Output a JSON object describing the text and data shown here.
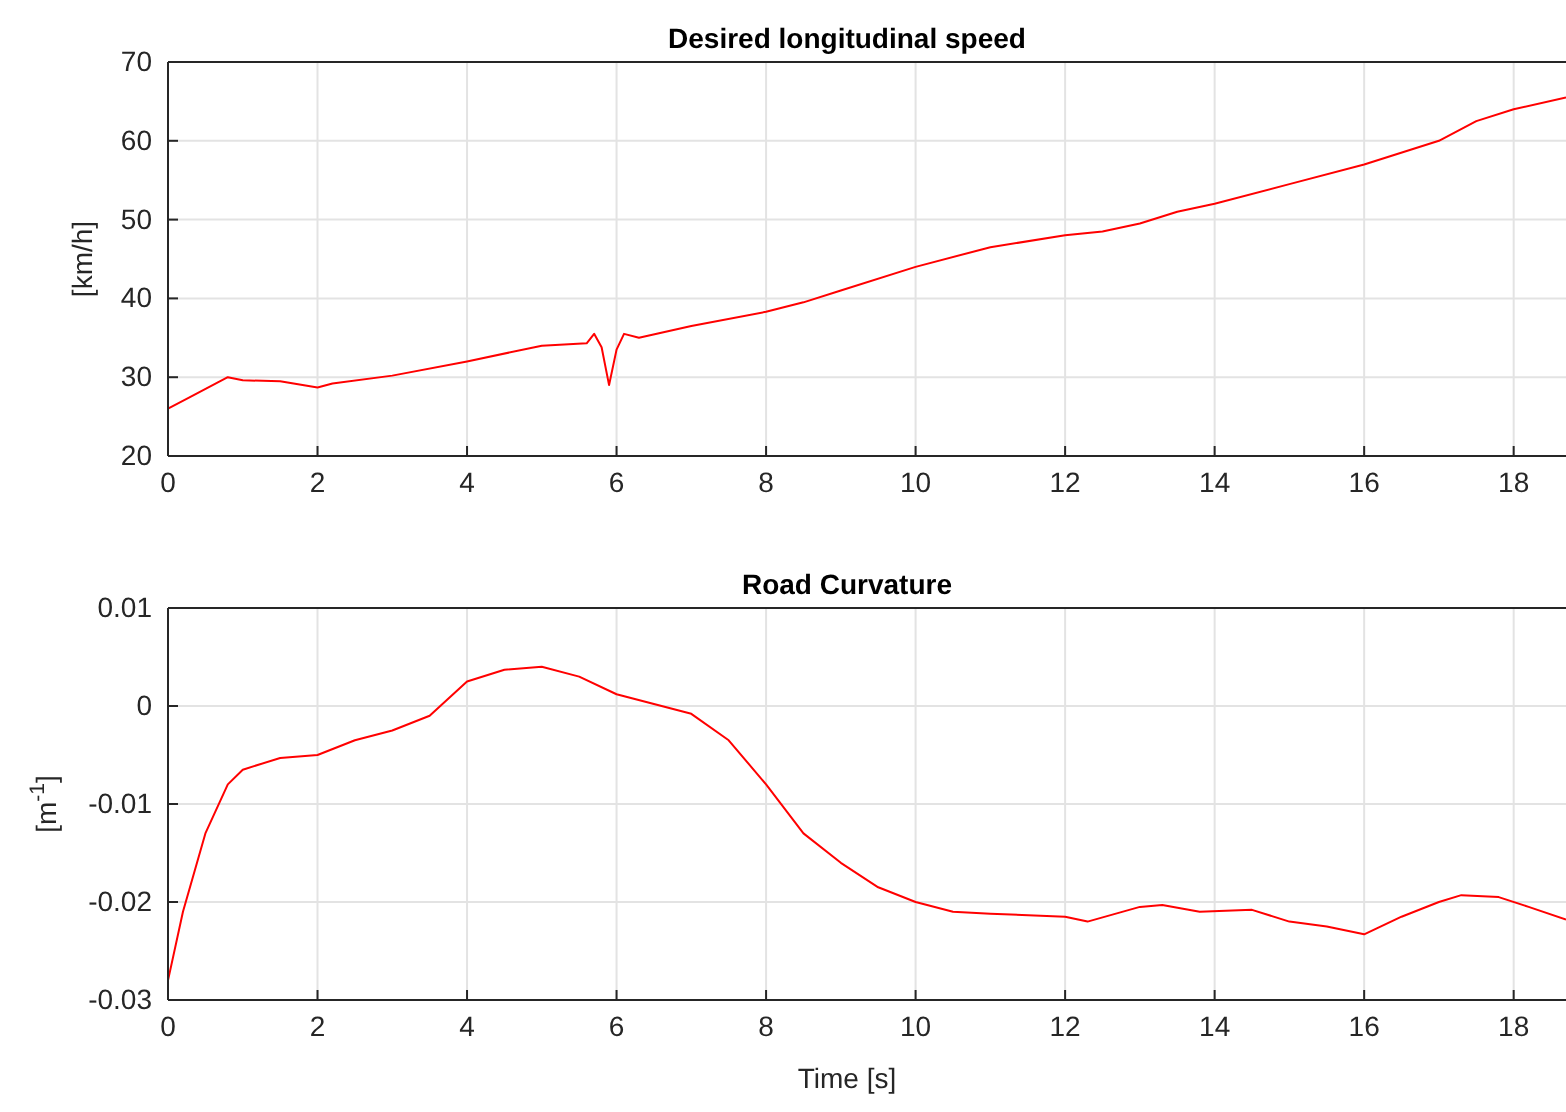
{
  "chart_data": [
    {
      "type": "line",
      "title": "Desired longitudinal speed",
      "ylabel": "[km/h]",
      "xlim": [
        0,
        18.7
      ],
      "ylim": [
        20,
        70
      ],
      "xticks": [
        0,
        2,
        4,
        6,
        8,
        10,
        12,
        14,
        16,
        18
      ],
      "yticks": [
        20,
        30,
        40,
        50,
        60,
        70
      ],
      "grid": true,
      "x": [
        0,
        0.3,
        0.8,
        1,
        1.5,
        2,
        2.2,
        3,
        4,
        5,
        5.6,
        5.7,
        5.8,
        5.9,
        6,
        6.1,
        6.3,
        7,
        8,
        8.5,
        9,
        10,
        11,
        12,
        12.5,
        13,
        13.5,
        14,
        15,
        16,
        17,
        17.5,
        18,
        18.7
      ],
      "series": [
        {
          "color": "#ff0000",
          "values": [
            26,
            27.5,
            30,
            29.6,
            29.5,
            28.7,
            29.2,
            30.2,
            32,
            34,
            34.3,
            35.5,
            33.8,
            29,
            33.5,
            35.5,
            35,
            36.5,
            38.3,
            39.5,
            41,
            44,
            46.5,
            48,
            48.5,
            49.5,
            51,
            52,
            54.5,
            57,
            60,
            62.5,
            64,
            65.5
          ]
        }
      ]
    },
    {
      "type": "line",
      "title": "Road Curvature",
      "xlabel": "Time [s]",
      "ylabel": "[m$^{-1}$]",
      "xlim": [
        0,
        18.7
      ],
      "ylim": [
        -0.03,
        0.01
      ],
      "xticks": [
        0,
        2,
        4,
        6,
        8,
        10,
        12,
        14,
        16,
        18
      ],
      "yticks": [
        -0.03,
        -0.02,
        -0.01,
        0,
        0.01
      ],
      "grid": true,
      "x": [
        0,
        0.2,
        0.5,
        0.8,
        1,
        1.5,
        2,
        2.5,
        3,
        3.5,
        4,
        4.5,
        5,
        5.5,
        6,
        6.5,
        7,
        7.5,
        8,
        8.5,
        9,
        9.5,
        10,
        10.5,
        11,
        12,
        12.3,
        13,
        13.3,
        13.8,
        14.5,
        15,
        15.5,
        16,
        16.5,
        17,
        17.3,
        17.8,
        18.2,
        18.7
      ],
      "series": [
        {
          "color": "#ff0000",
          "values": [
            -0.028,
            -0.021,
            -0.013,
            -0.008,
            -0.0065,
            -0.0053,
            -0.005,
            -0.0035,
            -0.0025,
            -0.001,
            0.0025,
            0.0037,
            0.004,
            0.003,
            0.0012,
            0.0002,
            -0.0008,
            -0.0035,
            -0.008,
            -0.013,
            -0.016,
            -0.0185,
            -0.02,
            -0.021,
            -0.0212,
            -0.0215,
            -0.022,
            -0.0205,
            -0.0203,
            -0.021,
            -0.0208,
            -0.022,
            -0.0225,
            -0.0233,
            -0.0215,
            -0.02,
            -0.0193,
            -0.0195,
            -0.0205,
            -0.0218
          ]
        }
      ]
    }
  ]
}
